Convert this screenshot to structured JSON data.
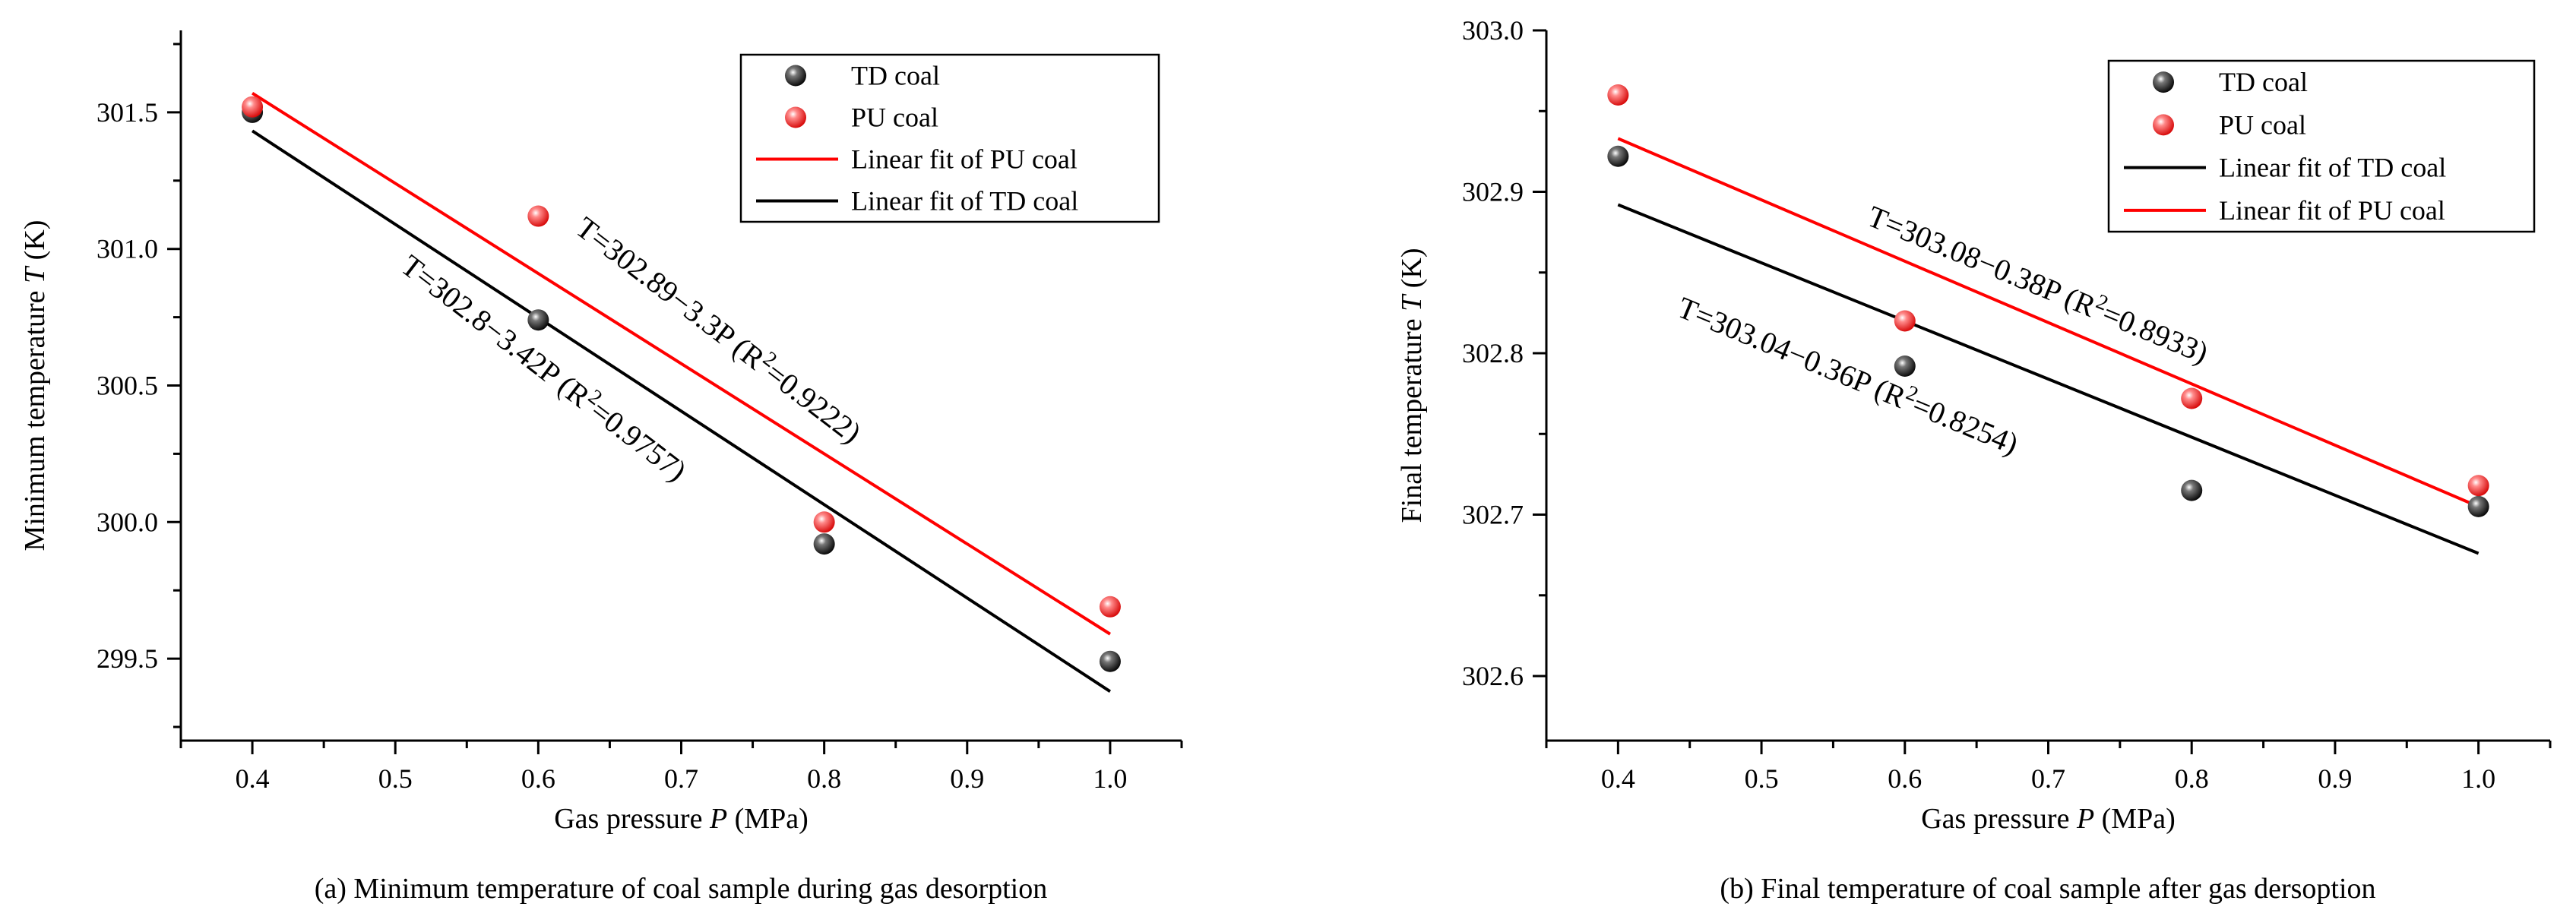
{
  "chart_data": [
    {
      "type": "scatter",
      "id": "a",
      "caption": "(a) Minimum temperature of coal sample during gas desorption",
      "xlabel_prefix": "Gas pressure ",
      "xlabel_var": "P",
      "xlabel_suffix": " (MPa)",
      "ylabel_prefix": "Minimum temperature ",
      "ylabel_var": "T",
      "ylabel_suffix": " (K)",
      "xlim": [
        0.35,
        1.05
      ],
      "ylim": [
        299.2,
        301.8
      ],
      "xticks": [
        0.4,
        0.5,
        0.6,
        0.7,
        0.8,
        0.9,
        1.0
      ],
      "xtick_labels": [
        "0.4",
        "0.5",
        "0.6",
        "0.7",
        "0.8",
        "0.9",
        "1.0"
      ],
      "yticks": [
        299.5,
        300.0,
        300.5,
        301.0,
        301.5
      ],
      "ytick_labels": [
        "299.5",
        "300.0",
        "300.5",
        "301.0",
        "301.5"
      ],
      "series": [
        {
          "name": "TD coal",
          "color": "#000000",
          "x": [
            0.4,
            0.6,
            0.8,
            1.0
          ],
          "y": [
            301.5,
            300.74,
            299.92,
            299.49
          ]
        },
        {
          "name": "PU coal",
          "color": "#ff0000",
          "x": [
            0.4,
            0.6,
            0.8,
            1.0
          ],
          "y": [
            301.52,
            301.12,
            300.0,
            299.69
          ]
        }
      ],
      "fits": [
        {
          "name": "Linear fit of PU coal",
          "color": "#ff0000",
          "intercept": 302.89,
          "slope": -3.3,
          "x0": 0.4,
          "x1": 1.0
        },
        {
          "name": "Linear fit of TD coal",
          "color": "#000000",
          "intercept": 302.8,
          "slope": -3.42,
          "x0": 0.4,
          "x1": 1.0
        }
      ],
      "legend_order": [
        "TD coal",
        "PU coal",
        "Linear fit of PU coal",
        "Linear fit of TD coal"
      ],
      "legend_position": "top-right",
      "annotations": [
        {
          "pre": "T=302.89−3.3P (R",
          "sup": "2",
          "post": "=0.9222)"
        },
        {
          "pre": "T=302.8−3.42P (R",
          "sup": "2",
          "post": "=0.9757)"
        }
      ]
    },
    {
      "type": "scatter",
      "id": "b",
      "caption": "(b) Final temperature of coal sample after gas dersoption",
      "xlabel_prefix": "Gas pressure ",
      "xlabel_var": "P",
      "xlabel_suffix": " (MPa)",
      "ylabel_prefix": "Final temperature ",
      "ylabel_var": "T",
      "ylabel_suffix": " (K)",
      "xlim": [
        0.35,
        1.05
      ],
      "ylim": [
        302.56,
        303.0
      ],
      "xticks": [
        0.4,
        0.5,
        0.6,
        0.7,
        0.8,
        0.9,
        1.0
      ],
      "xtick_labels": [
        "0.4",
        "0.5",
        "0.6",
        "0.7",
        "0.8",
        "0.9",
        "1.0"
      ],
      "yticks": [
        302.6,
        302.7,
        302.8,
        302.9,
        303.0
      ],
      "ytick_labels": [
        "302.6",
        "302.7",
        "302.8",
        "302.9",
        "303.0"
      ],
      "series": [
        {
          "name": "TD coal",
          "color": "#000000",
          "x": [
            0.4,
            0.6,
            0.8,
            1.0
          ],
          "y": [
            302.922,
            302.792,
            302.715,
            302.705
          ]
        },
        {
          "name": "PU coal",
          "color": "#ff0000",
          "x": [
            0.4,
            0.6,
            0.8,
            1.0
          ],
          "y": [
            302.96,
            302.82,
            302.772,
            302.718
          ]
        }
      ],
      "fits": [
        {
          "name": "Linear fit of TD coal",
          "color": "#000000",
          "intercept": 303.036,
          "slope": -0.36,
          "x0": 0.4,
          "x1": 1.0
        },
        {
          "name": "Linear fit of PU coal",
          "color": "#ff0000",
          "intercept": 303.085,
          "slope": -0.38,
          "x0": 0.4,
          "x1": 1.0
        }
      ],
      "legend_order": [
        "TD coal",
        "PU coal",
        "Linear fit of TD coal",
        "Linear fit of PU coal"
      ],
      "legend_position": "top-right",
      "annotations": [
        {
          "pre": "T=303.08−0.38P (R",
          "sup": "2",
          "post": "=0.8933)"
        },
        {
          "pre": "T=303.04−0.36P (R",
          "sup": "2",
          "post": "=0.8254)"
        }
      ]
    }
  ]
}
